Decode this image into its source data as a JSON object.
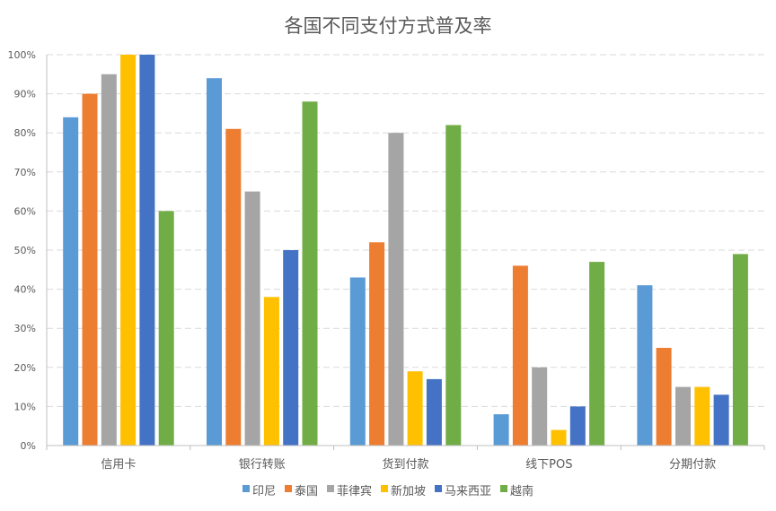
{
  "chart_data": {
    "type": "bar",
    "title": "各国不同支付方式普及率",
    "categories": [
      "信用卡",
      "银行转账",
      "货到付款",
      "线下POS",
      "分期付款"
    ],
    "y_ticks": [
      "0%",
      "10%",
      "20%",
      "30%",
      "40%",
      "50%",
      "60%",
      "70%",
      "80%",
      "90%",
      "100%"
    ],
    "ylim": [
      0,
      100
    ],
    "y_unit": "%",
    "grid": true,
    "legend_position": "bottom",
    "series": [
      {
        "name": "印尼",
        "color": "#5B9BD5",
        "values": [
          84,
          94,
          43,
          8,
          41
        ]
      },
      {
        "name": "泰国",
        "color": "#ED7D31",
        "values": [
          90,
          81,
          52,
          46,
          25
        ]
      },
      {
        "name": "菲律宾",
        "color": "#A5A5A5",
        "values": [
          95,
          65,
          80,
          20,
          15
        ]
      },
      {
        "name": "新加坡",
        "color": "#FFC000",
        "values": [
          100,
          38,
          19,
          4,
          15
        ]
      },
      {
        "name": "马来西亚",
        "color": "#4472C4",
        "values": [
          100,
          50,
          17,
          10,
          13
        ]
      },
      {
        "name": "越南",
        "color": "#70AD47",
        "values": [
          60,
          88,
          82,
          47,
          49
        ]
      }
    ]
  }
}
